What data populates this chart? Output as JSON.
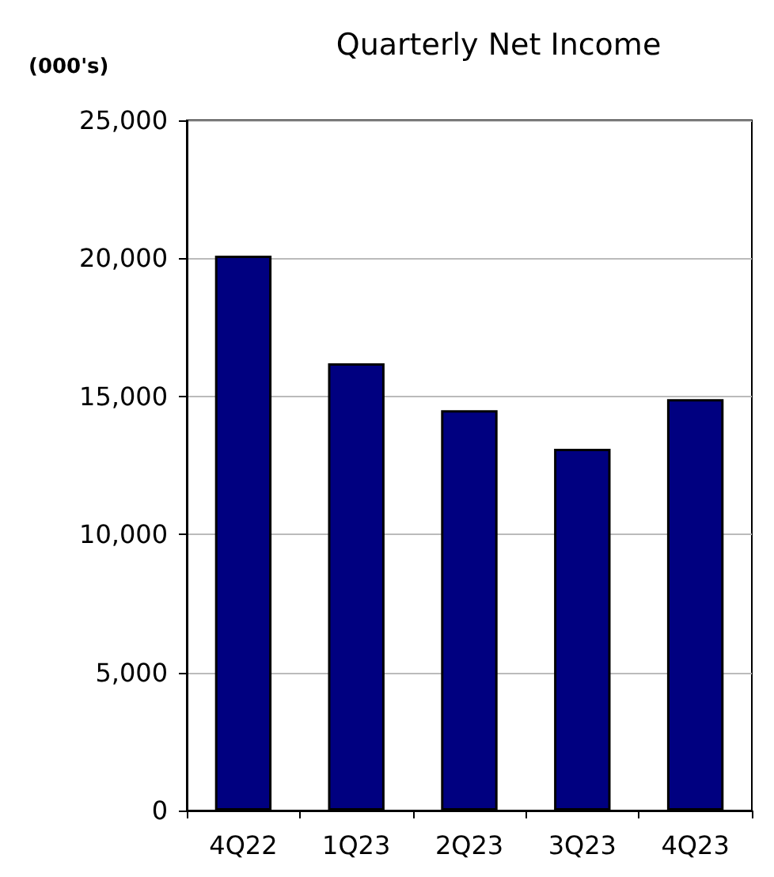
{
  "chart_data": {
    "type": "bar",
    "title": "Quarterly Net Income",
    "ylabel": "(000's)",
    "categories": [
      "4Q22",
      "1Q23",
      "2Q23",
      "3Q23",
      "4Q23"
    ],
    "values": [
      20100,
      16200,
      14500,
      13100,
      14900
    ],
    "color": "#000080",
    "ylim": [
      0,
      25000
    ],
    "yticks": [
      {
        "value": 0,
        "label": "0"
      },
      {
        "value": 5000,
        "label": "5,000"
      },
      {
        "value": 10000,
        "label": "10,000"
      },
      {
        "value": 15000,
        "label": "15,000"
      },
      {
        "value": 20000,
        "label": "20,000"
      },
      {
        "value": 25000,
        "label": "25,000"
      }
    ],
    "grid": "y"
  }
}
